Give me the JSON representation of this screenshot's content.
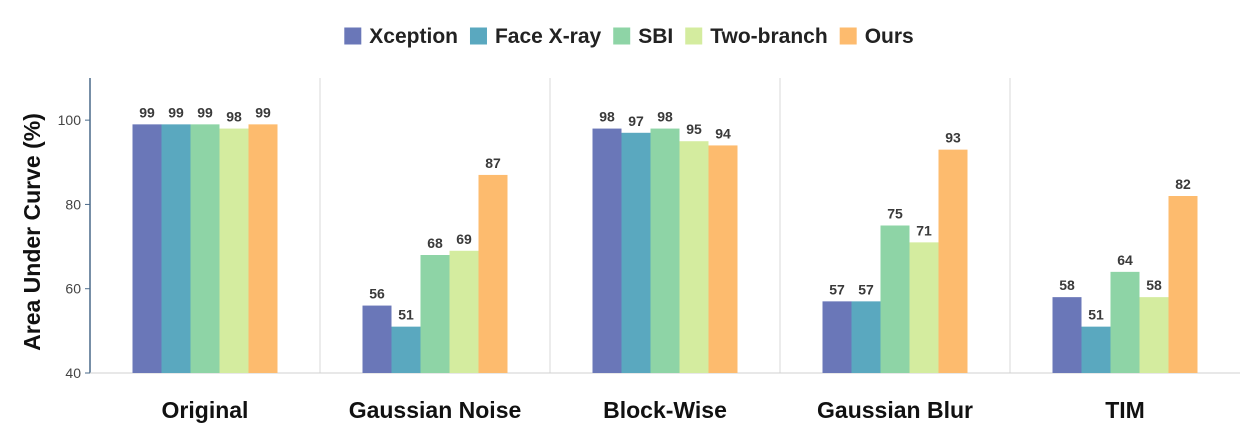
{
  "chart_data": {
    "type": "bar",
    "title": "",
    "xlabel": "",
    "ylabel": "Area Under Curve (%)",
    "ylim": [
      40,
      110
    ],
    "yticks": [
      40,
      60,
      80,
      100
    ],
    "grid": "vertical separators between groups",
    "legend_position": "top-center",
    "categories": [
      "Original",
      "Gaussian Noise",
      "Block-Wise",
      "Gaussian Blur",
      "TIM"
    ],
    "series": [
      {
        "name": "Xception",
        "color": "#6a77b8",
        "values": [
          99,
          56,
          98,
          57,
          58
        ]
      },
      {
        "name": "Face X-ray",
        "color": "#5aa8bf",
        "values": [
          99,
          51,
          97,
          57,
          51
        ]
      },
      {
        "name": "SBI",
        "color": "#8ed4a6",
        "values": [
          99,
          68,
          98,
          75,
          64
        ]
      },
      {
        "name": "Two-branch",
        "color": "#d4ec9f",
        "values": [
          98,
          69,
          95,
          71,
          58
        ]
      },
      {
        "name": "Ours",
        "color": "#fdbb6e",
        "values": [
          99,
          87,
          94,
          93,
          82
        ]
      }
    ]
  }
}
